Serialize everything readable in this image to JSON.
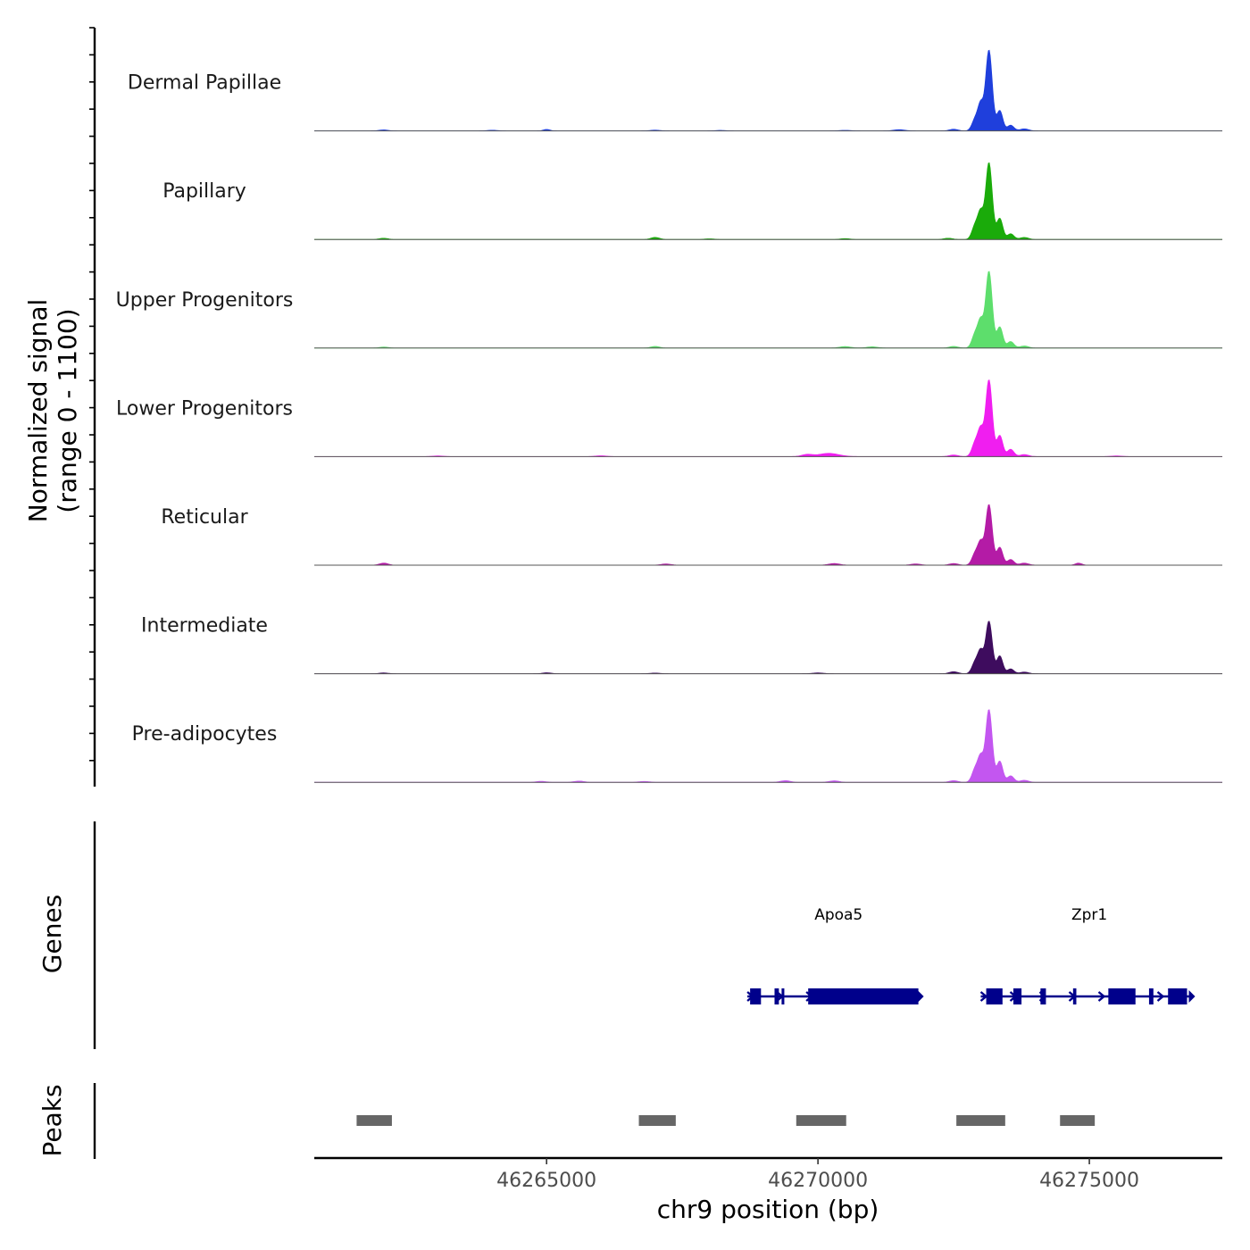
{
  "chart_data": {
    "type": "area",
    "title": "",
    "chromosome": "chr9",
    "xlabel": "chr9 position (bp)",
    "ylabel_line1": "Normalized signal",
    "ylabel_line2": "(range 0 - 1100)",
    "ylim": [
      0,
      1100
    ],
    "xlim": [
      46260720,
      46277450
    ],
    "x_ticks": [
      46265000,
      46270000,
      46275000
    ],
    "x_tick_labels": [
      "46265000",
      "46270000",
      "46275000"
    ],
    "tracks": [
      {
        "name": "Dermal Papillae",
        "color": "#1f3fdc",
        "main_peak": [
          46273150,
          1000,
          60
        ],
        "minor_peaks": [
          [
            46272900,
            150,
            60
          ],
          [
            46273000,
            300,
            50
          ],
          [
            46273350,
            250,
            55
          ],
          [
            46273550,
            70,
            60
          ],
          [
            46273800,
            25,
            80
          ],
          [
            46272500,
            20,
            80
          ],
          [
            46271500,
            15,
            100
          ],
          [
            46265000,
            18,
            60
          ],
          [
            46262000,
            12,
            80
          ],
          [
            46264000,
            8,
            90
          ],
          [
            46267000,
            9,
            90
          ],
          [
            46268200,
            6,
            90
          ],
          [
            46270500,
            7,
            100
          ]
        ]
      },
      {
        "name": "Papillary",
        "color": "#1aab0a",
        "main_peak": [
          46273150,
          950,
          60
        ],
        "minor_peaks": [
          [
            46272900,
            180,
            60
          ],
          [
            46273000,
            300,
            50
          ],
          [
            46273350,
            260,
            55
          ],
          [
            46273550,
            70,
            60
          ],
          [
            46273800,
            25,
            80
          ],
          [
            46272400,
            15,
            80
          ],
          [
            46267000,
            25,
            80
          ],
          [
            46262000,
            15,
            80
          ],
          [
            46268000,
            8,
            90
          ],
          [
            46270500,
            10,
            90
          ]
        ]
      },
      {
        "name": "Upper Progenitors",
        "color": "#5dde6c",
        "main_peak": [
          46273150,
          950,
          60
        ],
        "minor_peaks": [
          [
            46272900,
            180,
            60
          ],
          [
            46273000,
            300,
            50
          ],
          [
            46273350,
            260,
            55
          ],
          [
            46273550,
            80,
            60
          ],
          [
            46273800,
            25,
            80
          ],
          [
            46272500,
            20,
            80
          ],
          [
            46271000,
            15,
            100
          ],
          [
            46270500,
            18,
            100
          ],
          [
            46267000,
            20,
            80
          ],
          [
            46262000,
            12,
            80
          ]
        ]
      },
      {
        "name": "Lower Progenitors",
        "color": "#f01ef0",
        "main_peak": [
          46273150,
          950,
          60
        ],
        "minor_peaks": [
          [
            46272900,
            180,
            60
          ],
          [
            46273000,
            300,
            50
          ],
          [
            46273350,
            260,
            55
          ],
          [
            46273550,
            90,
            60
          ],
          [
            46273800,
            25,
            80
          ],
          [
            46272500,
            20,
            80
          ],
          [
            46270200,
            40,
            180
          ],
          [
            46269800,
            25,
            100
          ],
          [
            46266000,
            10,
            100
          ],
          [
            46263000,
            8,
            100
          ],
          [
            46275500,
            8,
            100
          ]
        ]
      },
      {
        "name": "Reticular",
        "color": "#b41ba6",
        "main_peak": [
          46273150,
          750,
          60
        ],
        "minor_peaks": [
          [
            46272900,
            150,
            60
          ],
          [
            46273000,
            250,
            50
          ],
          [
            46273350,
            220,
            55
          ],
          [
            46273550,
            70,
            60
          ],
          [
            46273800,
            25,
            80
          ],
          [
            46272500,
            20,
            80
          ],
          [
            46274800,
            25,
            60
          ],
          [
            46262000,
            25,
            80
          ],
          [
            46270300,
            20,
            100
          ],
          [
            46267200,
            15,
            90
          ],
          [
            46271800,
            15,
            90
          ]
        ]
      },
      {
        "name": "Intermediate",
        "color": "#3e0c5e",
        "main_peak": [
          46273150,
          650,
          60
        ],
        "minor_peaks": [
          [
            46272900,
            150,
            60
          ],
          [
            46273000,
            250,
            50
          ],
          [
            46273350,
            220,
            55
          ],
          [
            46273550,
            60,
            60
          ],
          [
            46273800,
            20,
            80
          ],
          [
            46272500,
            25,
            80
          ],
          [
            46265000,
            12,
            80
          ],
          [
            46262000,
            10,
            80
          ],
          [
            46267000,
            8,
            90
          ],
          [
            46270000,
            10,
            100
          ]
        ]
      },
      {
        "name": "Pre-adipocytes",
        "color": "#c356f0",
        "main_peak": [
          46273150,
          900,
          60
        ],
        "minor_peaks": [
          [
            46272900,
            170,
            60
          ],
          [
            46273000,
            280,
            50
          ],
          [
            46273350,
            260,
            55
          ],
          [
            46273550,
            80,
            60
          ],
          [
            46273800,
            25,
            80
          ],
          [
            46272500,
            20,
            80
          ],
          [
            46269400,
            20,
            90
          ],
          [
            46270300,
            18,
            90
          ],
          [
            46265600,
            15,
            90
          ],
          [
            46264900,
            12,
            90
          ],
          [
            46266800,
            10,
            100
          ]
        ]
      }
    ],
    "genes": [
      {
        "name": "Apoa5",
        "strand": "+",
        "start": 46268700,
        "end": 46271850,
        "label_position": 46270380,
        "exons": [
          [
            46268750,
            46268950
          ],
          [
            46269200,
            46269280
          ],
          [
            46269330,
            46269380
          ],
          [
            46269820,
            46271850
          ]
        ]
      },
      {
        "name": "Zpr1",
        "strand": "+",
        "start": 46273000,
        "end": 46276850,
        "label_position": 46275000,
        "exons": [
          [
            46273100,
            46273400
          ],
          [
            46273600,
            46273750
          ],
          [
            46274100,
            46274200
          ],
          [
            46274700,
            46274760
          ],
          [
            46275350,
            46275850
          ],
          [
            46276100,
            46276180
          ],
          [
            46276450,
            46276800
          ]
        ]
      }
    ],
    "peaks": [
      [
        46261500,
        46262150
      ],
      [
        46266700,
        46267380
      ],
      [
        46269600,
        46270520
      ],
      [
        46272550,
        46273450
      ],
      [
        46274460,
        46275100
      ]
    ],
    "gene_color": "#00008b",
    "peak_color": "#666666"
  }
}
